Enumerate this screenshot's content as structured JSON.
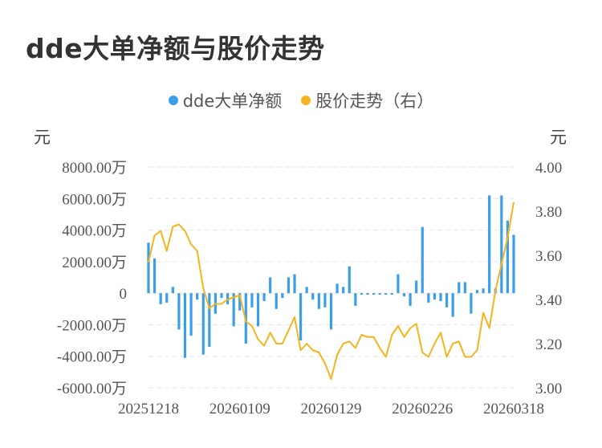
{
  "title": "dde大单净额与股价走势",
  "colors": {
    "bar": "#3a9fe8",
    "line": "#f5b41f",
    "grid": "#e6e6e6"
  },
  "chart_data": {
    "type": "bar+line",
    "title": "dde大单净额与股价走势",
    "left_unit": "元",
    "right_unit": "元",
    "legend_position": "top-center",
    "grid": true,
    "left_axis": {
      "ylim": [
        -6000,
        8000
      ],
      "ticks": [
        -6000,
        -4000,
        -2000,
        0,
        2000,
        4000,
        6000,
        8000
      ],
      "tick_labels": [
        "-6000.00万",
        "-4000.00万",
        "-2000.00万",
        "0",
        "2000.00万",
        "4000.00万",
        "6000.00万",
        "8000.00万"
      ]
    },
    "right_axis": {
      "ylim": [
        3.0,
        4.0
      ],
      "ticks": [
        3.0,
        3.2,
        3.4,
        3.6,
        3.8,
        4.0
      ],
      "tick_labels": [
        "3.00",
        "3.20",
        "3.40",
        "3.60",
        "3.80",
        "4.00"
      ]
    },
    "x_tick_labels": [
      {
        "label": "20251218",
        "index": 0
      },
      {
        "label": "20260109",
        "index": 15
      },
      {
        "label": "20260129",
        "index": 30
      },
      {
        "label": "20260226",
        "index": 45
      },
      {
        "label": "20260318",
        "index": 60
      }
    ],
    "series": [
      {
        "name": "dde大单净额",
        "axis": "left",
        "type": "bar",
        "values": [
          3200,
          2200,
          -700,
          -600,
          400,
          -2300,
          -4100,
          -2700,
          -400,
          -3900,
          -3400,
          -1300,
          -300,
          -700,
          -2100,
          -1100,
          -3200,
          -900,
          -2100,
          -500,
          1000,
          -1000,
          -300,
          1000,
          1200,
          -3000,
          400,
          -400,
          -1000,
          -900,
          -2300,
          600,
          400,
          1700,
          -800,
          -100,
          -100,
          -100,
          -100,
          -100,
          -100,
          1200,
          -200,
          -800,
          800,
          4200,
          -600,
          -400,
          -500,
          -900,
          -1500,
          700,
          700,
          -1300,
          200,
          300,
          6200,
          300,
          6200,
          4600,
          3700
        ]
      },
      {
        "name": "股价走势（右）",
        "axis": "right",
        "type": "line",
        "values": [
          3.57,
          3.69,
          3.71,
          3.62,
          3.73,
          3.74,
          3.71,
          3.65,
          3.62,
          3.45,
          3.36,
          3.38,
          3.38,
          3.4,
          3.41,
          3.42,
          3.3,
          3.28,
          3.22,
          3.19,
          3.25,
          3.2,
          3.2,
          3.26,
          3.32,
          3.17,
          3.2,
          3.17,
          3.16,
          3.11,
          3.04,
          3.15,
          3.2,
          3.21,
          3.18,
          3.24,
          3.23,
          3.23,
          3.18,
          3.14,
          3.24,
          3.28,
          3.23,
          3.27,
          3.29,
          3.16,
          3.14,
          3.2,
          3.25,
          3.14,
          3.2,
          3.21,
          3.14,
          3.14,
          3.17,
          3.34,
          3.27,
          3.44,
          3.56,
          3.68,
          3.84
        ]
      }
    ]
  }
}
